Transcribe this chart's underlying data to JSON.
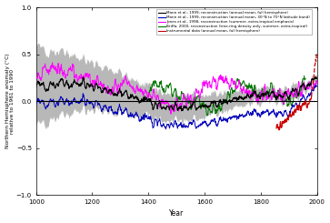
{
  "xlabel": "Year",
  "ylabel": "Northern Hemisphere anomaly (°C)\nrelative to 1961 to 1990",
  "xlim": [
    1000,
    2000
  ],
  "ylim": [
    -1.0,
    1.0
  ],
  "xticks": [
    1000,
    1200,
    1400,
    1600,
    1800,
    2000
  ],
  "yticks": [
    -1.0,
    -0.5,
    0.0,
    0.5,
    1.0
  ],
  "legend_entries": [
    "Mann et al., 1999, reconstruction (annual mean, full hemisphere)",
    "Mann et al., 1999, reconstruction (annual mean, 30°N to 70°N latitude band)",
    "Jones et al., 1998, reconstruction (summer, extra-tropical emphasis)",
    "Briffa, 2000, reconstruction (tree-ring density only, summer, extra-tropical)",
    "Instrumental data (annual mean, full hemisphere)"
  ],
  "legend_colors": [
    "#000000",
    "#0000bb",
    "#ff00ff",
    "#007700",
    "#cc0000"
  ],
  "background_color": "#ffffff",
  "fill_color": "#b8b8b8",
  "fig_width": 3.63,
  "fig_height": 2.45,
  "dpi": 100
}
